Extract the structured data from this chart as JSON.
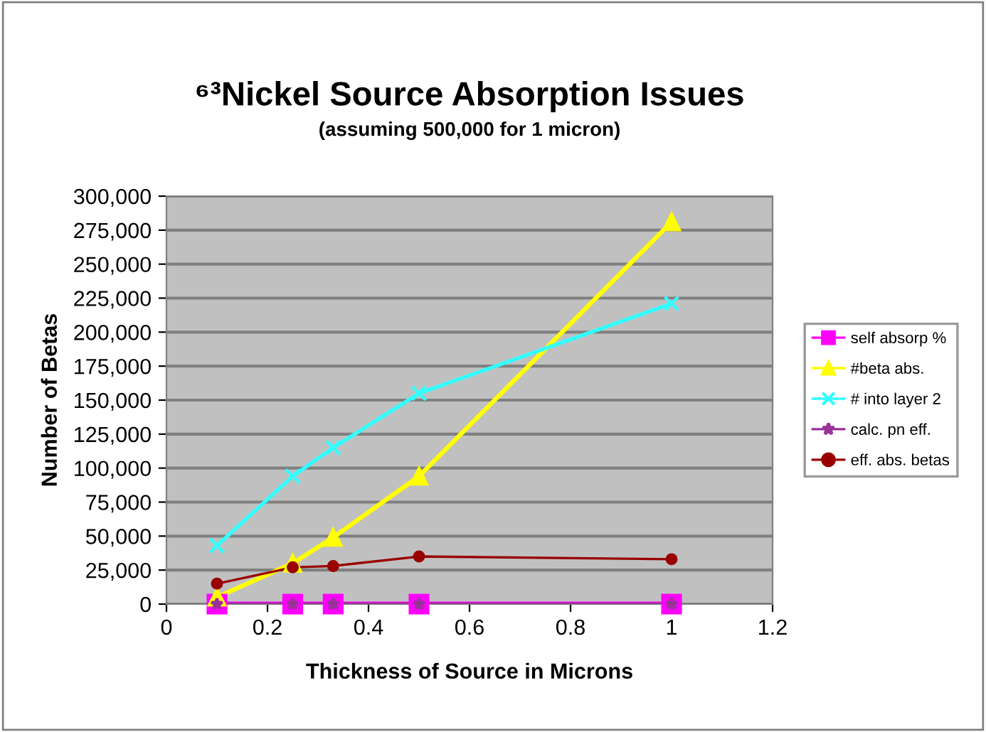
{
  "chart_data": {
    "type": "line",
    "title": "⁶³Nickel Source Absorption Issues",
    "subtitle": "(assuming 500,000 for 1 micron)",
    "xlabel": "Thickness of Source in Microns",
    "ylabel": "Number of Betas",
    "x": [
      0.1,
      0.25,
      0.33,
      0.5,
      1
    ],
    "series": [
      {
        "name": "self absorp %",
        "color": "#ff00ff",
        "marker": "square",
        "values": [
          0,
          0,
          0,
          0,
          0
        ]
      },
      {
        "name": "#beta abs.",
        "color": "#ffff00",
        "marker": "triangle",
        "values": [
          5000,
          30000,
          49000,
          94000,
          281000
        ]
      },
      {
        "name": "# into layer 2",
        "color": "#33ffff",
        "marker": "cross",
        "values": [
          43000,
          94000,
          115000,
          155000,
          221000
        ]
      },
      {
        "name": "calc. pn eff.",
        "color": "#993399",
        "marker": "star",
        "values": [
          0,
          0,
          0,
          0,
          0
        ]
      },
      {
        "name": "eff. abs. betas",
        "color": "#990000",
        "marker": "circle",
        "values": [
          15000,
          27000,
          28000,
          35000,
          33000
        ]
      }
    ],
    "xlim": [
      0,
      1.2
    ],
    "xticks": [
      0,
      0.2,
      0.4,
      0.6,
      0.8,
      1,
      1.2
    ],
    "ylim": [
      0,
      300000
    ],
    "yticks": [
      {
        "value": 0,
        "label": "0"
      },
      {
        "value": 25000,
        "label": "25,000"
      },
      {
        "value": 50000,
        "label": "50,000"
      },
      {
        "value": 75000,
        "label": "75,000"
      },
      {
        "value": 100000,
        "label": "100,000"
      },
      {
        "value": 125000,
        "label": "125,000"
      },
      {
        "value": 150000,
        "label": "150,000"
      },
      {
        "value": 175000,
        "label": "175,000"
      },
      {
        "value": 200000,
        "label": "200,000"
      },
      {
        "value": 225000,
        "label": "225,000"
      },
      {
        "value": 250000,
        "label": "250,000"
      },
      {
        "value": 275000,
        "label": "275,000"
      },
      {
        "value": 300000,
        "label": "300,000"
      }
    ],
    "grid": "y",
    "legend": "right",
    "line_style": "solid"
  }
}
